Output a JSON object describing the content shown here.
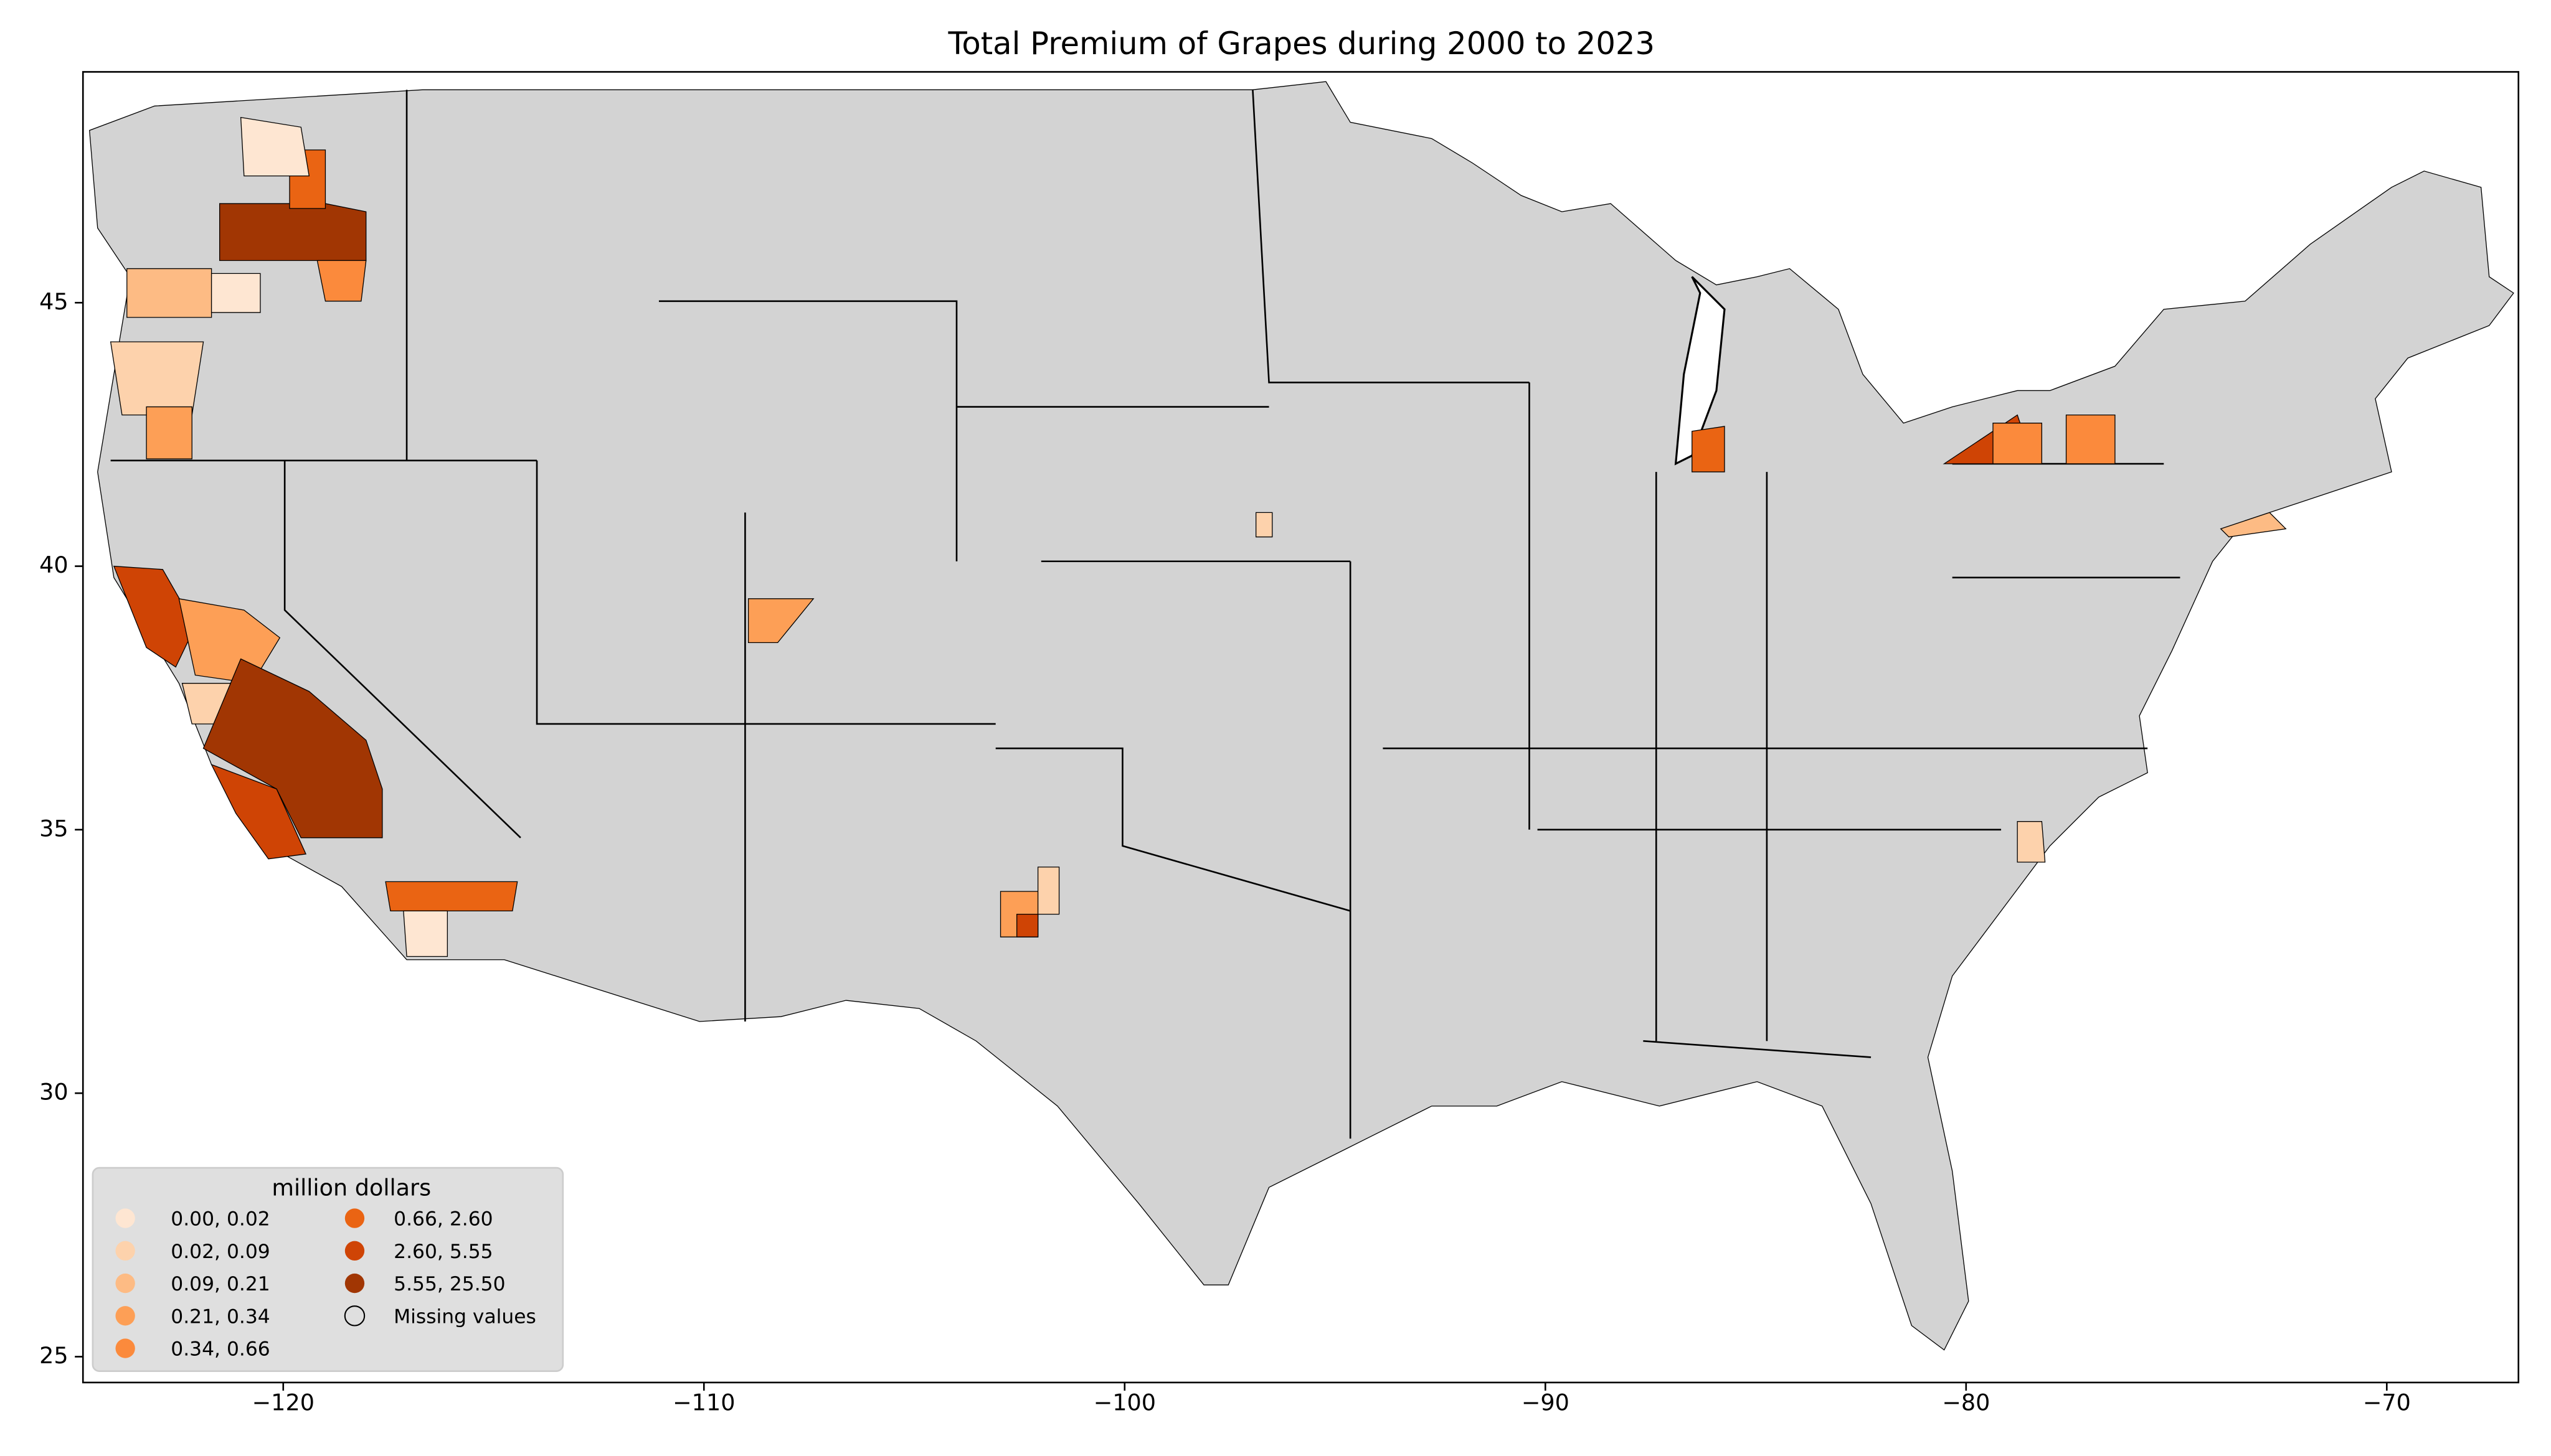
{
  "chart_data": {
    "type": "choropleth",
    "title": "Total  Premium of Grapes during 2000 to 2023",
    "xlim": [
      -124.76,
      -66.87
    ],
    "ylim": [
      24.51,
      49.38
    ],
    "xticks": [
      {
        "value": -120,
        "label": "−120"
      },
      {
        "value": -110,
        "label": "−110"
      },
      {
        "value": -100,
        "label": "−100"
      },
      {
        "value": -90,
        "label": "−90"
      },
      {
        "value": -80,
        "label": "−80"
      },
      {
        "value": -70,
        "label": "−70"
      }
    ],
    "yticks": [
      25,
      30,
      35,
      40,
      45
    ],
    "missing_color": "#d3d3d3",
    "legend": {
      "title": "million dollars",
      "position": "lower left",
      "entries": [
        {
          "label": "0.00,  0.02",
          "color": "#fee6d2"
        },
        {
          "label": "0.02,  0.09",
          "color": "#fdd2ac"
        },
        {
          "label": "0.09,  0.21",
          "color": "#fdbb84"
        },
        {
          "label": "0.21,  0.34",
          "color": "#fd9f56"
        },
        {
          "label": "0.34,  0.66",
          "color": "#fb8a3c"
        },
        {
          "label": "0.66,  2.60",
          "color": "#ea6413"
        },
        {
          "label": "2.60,  5.55",
          "color": "#cf4405"
        },
        {
          "label": "5.55, 25.50",
          "color": "#a13603"
        }
      ],
      "missing_label": "Missing values"
    }
  }
}
